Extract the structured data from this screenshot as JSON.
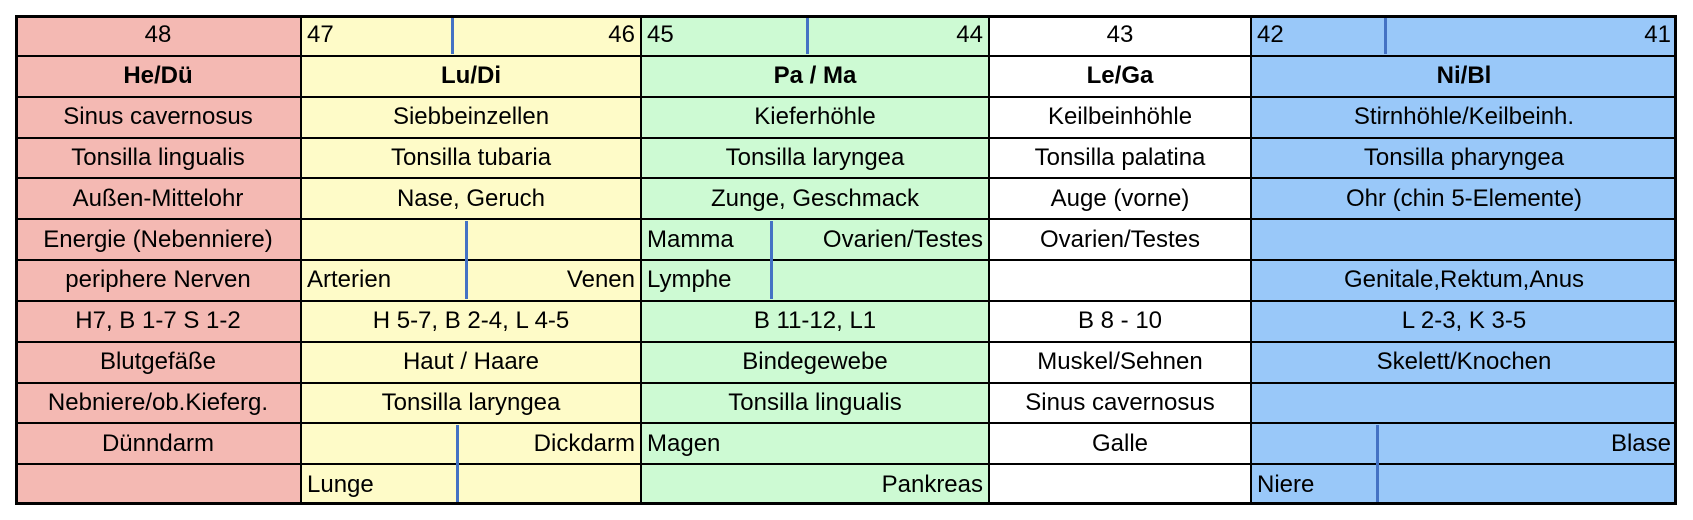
{
  "colors": {
    "he_du": "#f4b9b3",
    "lu_di": "#fefbc8",
    "pa_ma": "#cdfad3",
    "le_ga": "#ffffff",
    "ni_bl": "#99c8f9",
    "divider": "#4472c4",
    "border": "#000000"
  },
  "rows": [
    {
      "he_du": {
        "text": "48"
      },
      "lu_di": {
        "left": "47",
        "right": "46"
      },
      "pa_ma": {
        "left": "45",
        "right": "44"
      },
      "le_ga": {
        "text": "43"
      },
      "ni_bl": {
        "left": "42",
        "right": "41"
      }
    },
    {
      "he_du": {
        "text": "He/Dü"
      },
      "lu_di": {
        "text": "Lu/Di"
      },
      "pa_ma": {
        "text": "Pa / Ma"
      },
      "le_ga": {
        "text": "Le/Ga"
      },
      "ni_bl": {
        "text": "Ni/Bl"
      }
    },
    {
      "he_du": {
        "text": "Sinus cavernosus"
      },
      "lu_di": {
        "text": "Siebbeinzellen"
      },
      "pa_ma": {
        "text": "Kieferhöhle"
      },
      "le_ga": {
        "text": "Keilbeinhöhle"
      },
      "ni_bl": {
        "text": "Stirnhöhle/Keilbeinh."
      }
    },
    {
      "he_du": {
        "text": "Tonsilla lingualis"
      },
      "lu_di": {
        "text": "Tonsilla tubaria"
      },
      "pa_ma": {
        "text": "Tonsilla laryngea"
      },
      "le_ga": {
        "text": "Tonsilla palatina"
      },
      "ni_bl": {
        "text": "Tonsilla pharyngea"
      }
    },
    {
      "he_du": {
        "text": "Außen-Mittelohr"
      },
      "lu_di": {
        "text": "Nase, Geruch"
      },
      "pa_ma": {
        "text": "Zunge, Geschmack"
      },
      "le_ga": {
        "text": "Auge (vorne)"
      },
      "ni_bl": {
        "text": "Ohr (chin 5-Elemente)"
      }
    },
    {
      "he_du": {
        "text": "Energie (Nebenniere)"
      },
      "lu_di": {
        "text": ""
      },
      "pa_ma": {
        "left": "Mamma",
        "right": "Ovarien/Testes"
      },
      "le_ga": {
        "text": "Ovarien/Testes"
      },
      "ni_bl": {
        "text": ""
      }
    },
    {
      "he_du": {
        "text": "periphere Nerven"
      },
      "lu_di": {
        "left": "Arterien",
        "right": "Venen"
      },
      "pa_ma": {
        "left": "Lymphe",
        "right": ""
      },
      "le_ga": {
        "text": ""
      },
      "ni_bl": {
        "text": "Genitale,Rektum,Anus"
      }
    },
    {
      "he_du": {
        "text": "H7, B 1-7 S 1-2"
      },
      "lu_di": {
        "text": "H 5-7, B 2-4, L 4-5"
      },
      "pa_ma": {
        "text": "B 11-12, L1"
      },
      "le_ga": {
        "text": "B 8 - 10"
      },
      "ni_bl": {
        "text": "L 2-3, K 3-5"
      }
    },
    {
      "he_du": {
        "text": "Blutgefäße"
      },
      "lu_di": {
        "text": "Haut / Haare"
      },
      "pa_ma": {
        "text": "Bindegewebe"
      },
      "le_ga": {
        "text": "Muskel/Sehnen"
      },
      "ni_bl": {
        "text": "Skelett/Knochen"
      }
    },
    {
      "he_du": {
        "text": "Nebniere/ob.Kieferg."
      },
      "lu_di": {
        "text": "Tonsilla laryngea"
      },
      "pa_ma": {
        "text": "Tonsilla lingualis"
      },
      "le_ga": {
        "text": "Sinus cavernosus"
      },
      "ni_bl": {
        "text": ""
      }
    },
    {
      "he_du": {
        "text": "Dünndarm"
      },
      "lu_di": {
        "left": "",
        "right": "Dickdarm"
      },
      "pa_ma": {
        "left": "Magen",
        "right": ""
      },
      "le_ga": {
        "text": "Galle"
      },
      "ni_bl": {
        "left": "",
        "right": "Blase"
      }
    },
    {
      "he_du": {
        "text": ""
      },
      "lu_di": {
        "left": "Lunge",
        "right": ""
      },
      "pa_ma": {
        "left": "",
        "right": "Pankreas"
      },
      "le_ga": {
        "text": ""
      },
      "ni_bl": {
        "left": "Niere",
        "right": ""
      }
    }
  ]
}
